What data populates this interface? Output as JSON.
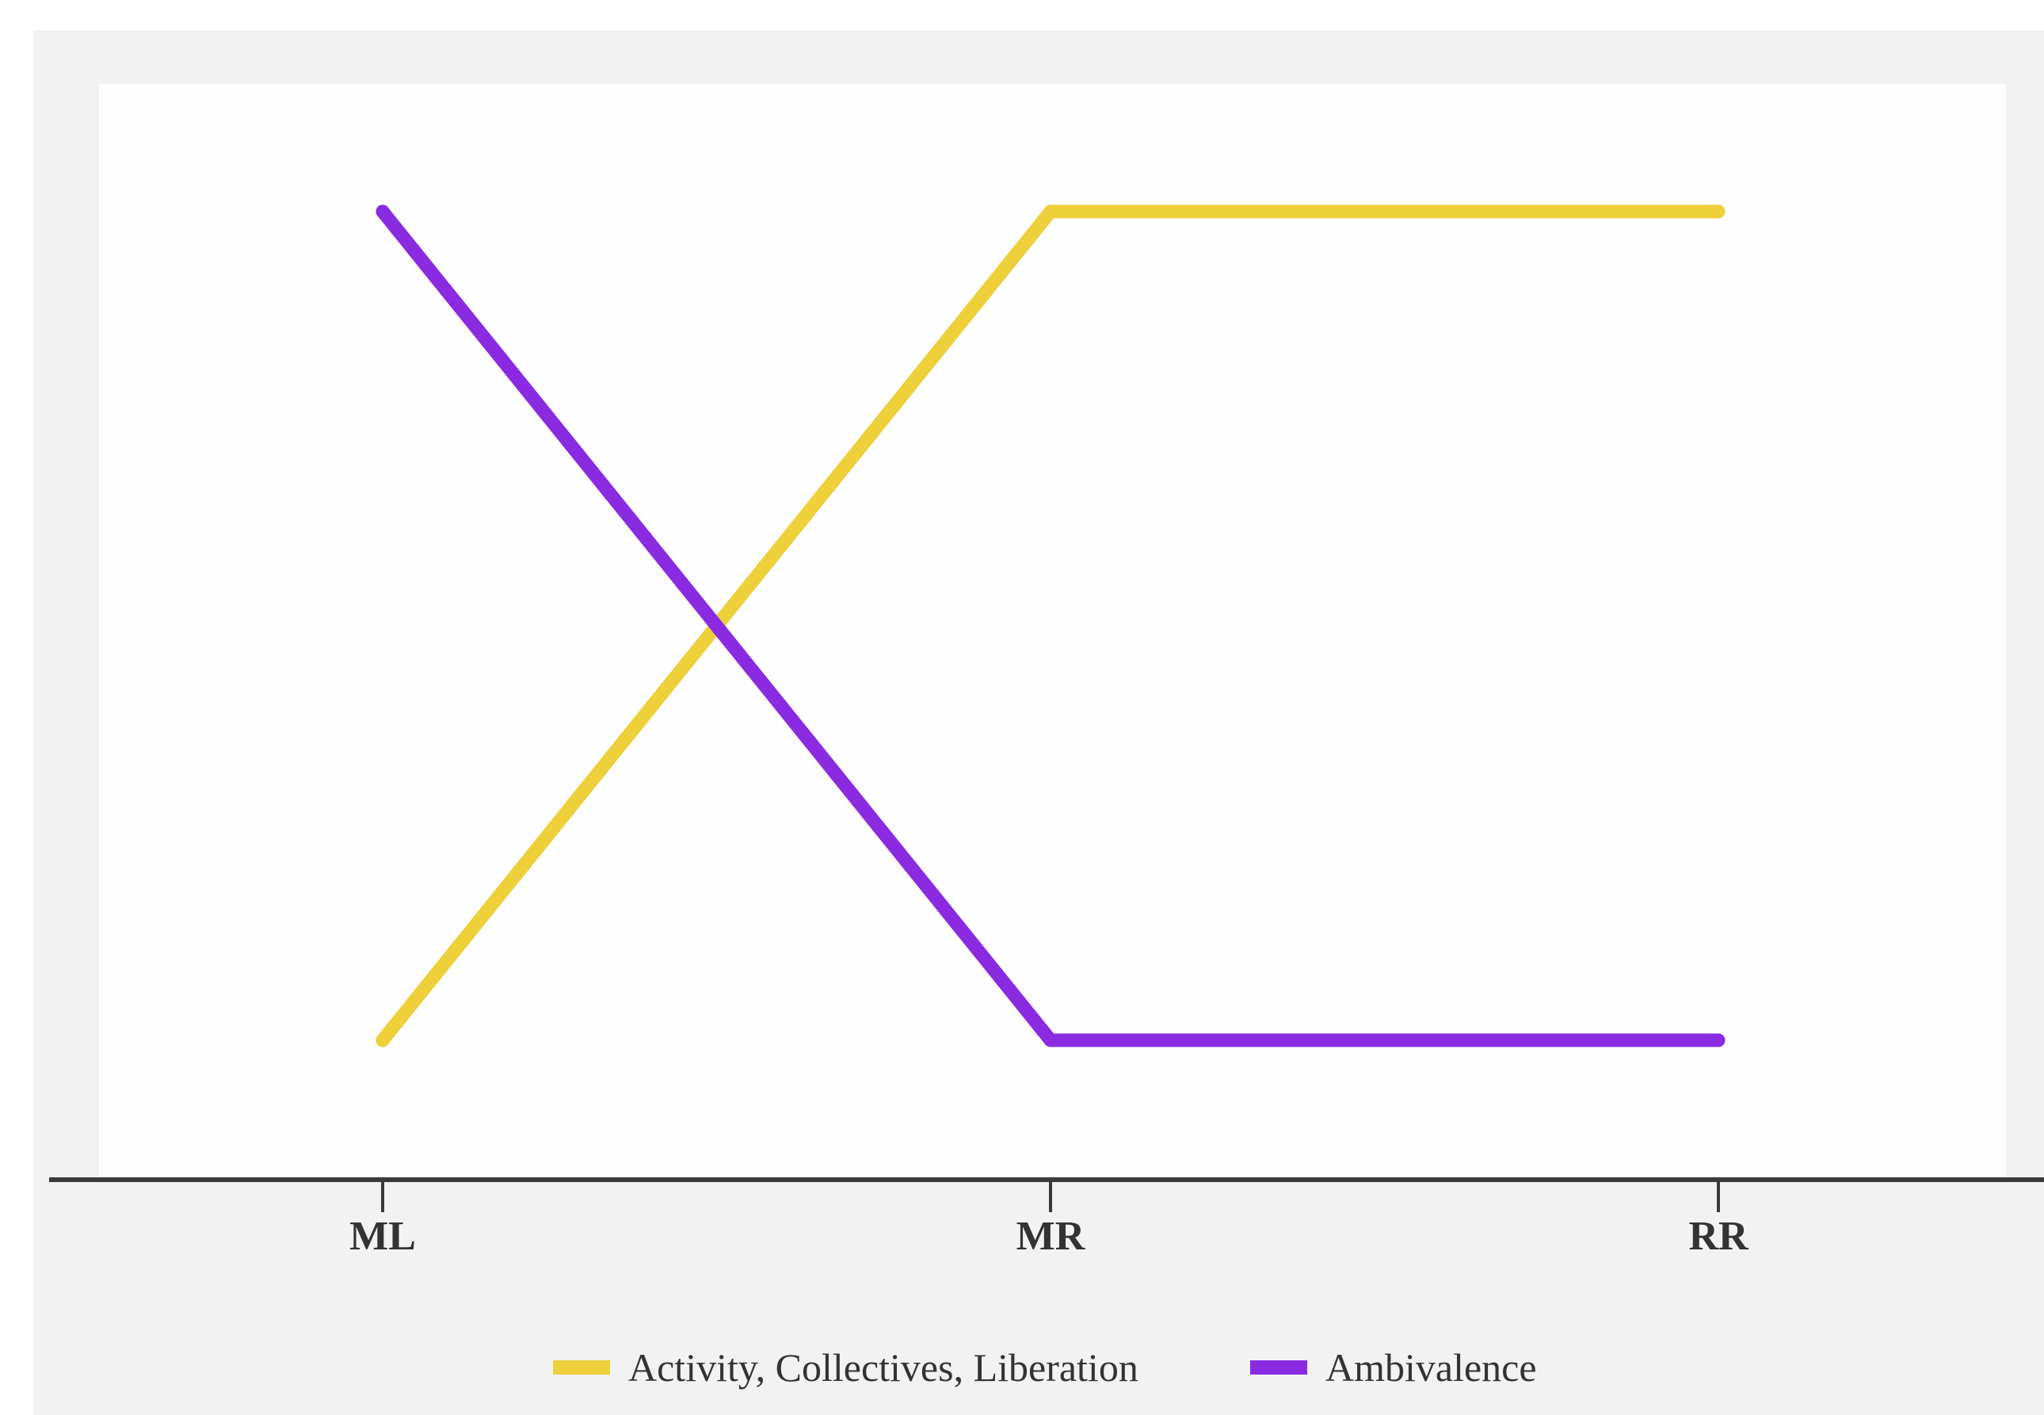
{
  "chart_data": {
    "type": "line",
    "categories": [
      "ML",
      "MR",
      "RR"
    ],
    "series": [
      {
        "name": "Activity, Collectives, Liberation",
        "color": "#edd03a",
        "values": [
          0,
          1,
          1
        ]
      },
      {
        "name": "Ambivalence",
        "color": "#8a2be2",
        "values": [
          1,
          0,
          0
        ]
      }
    ],
    "ylim": [
      0,
      1
    ],
    "grid": false,
    "legend_position": "bottom-center",
    "colors": {
      "outer_background": "#f2f2f2",
      "plot_background": "#fefefe",
      "axis": "#3a3a3a",
      "text": "#333333"
    }
  }
}
